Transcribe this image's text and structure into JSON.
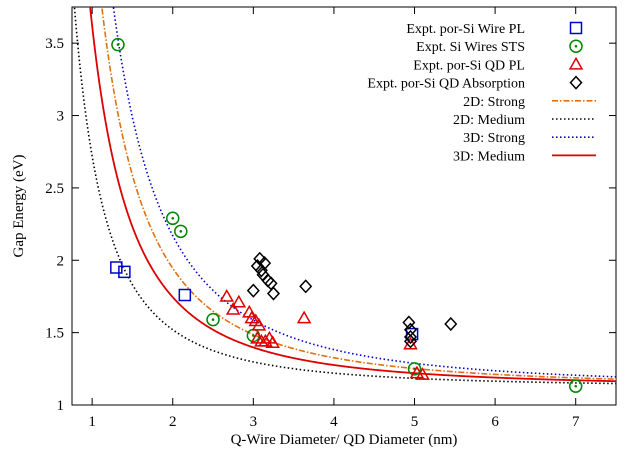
{
  "chart_data": {
    "type": "scatter",
    "title": "",
    "xlabel": "Q-Wire Diameter/ QD Diameter (nm)",
    "ylabel": "Gap Energy (eV)",
    "xlim": [
      0.75,
      7.5
    ],
    "ylim": [
      1.0,
      3.75
    ],
    "x_ticks": [
      "1",
      "2",
      "3",
      "4",
      "5",
      "6",
      "7"
    ],
    "y_ticks": [
      "1",
      "1.5",
      "2",
      "2.5",
      "3",
      "3.5"
    ],
    "grid": false,
    "legend_position": "top-right",
    "series": [
      {
        "name": "Expt. por-Si Wire PL",
        "kind": "points",
        "marker": "square",
        "color": "#0000cc",
        "points": [
          [
            1.3,
            1.95
          ],
          [
            1.4,
            1.92
          ],
          [
            2.15,
            1.76
          ],
          [
            4.97,
            1.49
          ]
        ]
      },
      {
        "name": "Expt. Si Wires STS",
        "kind": "points",
        "marker": "circle-dot",
        "color": "#008800",
        "points": [
          [
            1.32,
            3.49
          ],
          [
            2.0,
            2.29
          ],
          [
            2.1,
            2.2
          ],
          [
            2.5,
            1.59
          ],
          [
            3.0,
            1.48
          ],
          [
            5.0,
            1.25
          ],
          [
            7.0,
            1.13
          ]
        ]
      },
      {
        "name": "Expt. por-Si QD PL",
        "kind": "points",
        "marker": "triangle",
        "color": "#dd0000",
        "points": [
          [
            2.67,
            1.75
          ],
          [
            2.75,
            1.66
          ],
          [
            2.82,
            1.71
          ],
          [
            2.95,
            1.64
          ],
          [
            2.98,
            1.6
          ],
          [
            3.03,
            1.58
          ],
          [
            3.07,
            1.55
          ],
          [
            3.05,
            1.46
          ],
          [
            3.1,
            1.44
          ],
          [
            3.15,
            1.44
          ],
          [
            3.2,
            1.46
          ],
          [
            3.24,
            1.43
          ],
          [
            3.63,
            1.6
          ],
          [
            4.95,
            1.42
          ],
          [
            5.03,
            1.22
          ],
          [
            5.1,
            1.21
          ]
        ]
      },
      {
        "name": "Expt. por-Si QD Absorption",
        "kind": "points",
        "marker": "diamond",
        "color": "#000000",
        "points": [
          [
            3.0,
            1.79
          ],
          [
            3.05,
            1.96
          ],
          [
            3.08,
            2.01
          ],
          [
            3.1,
            1.93
          ],
          [
            3.12,
            1.9
          ],
          [
            3.14,
            1.98
          ],
          [
            3.18,
            1.86
          ],
          [
            3.22,
            1.84
          ],
          [
            3.25,
            1.77
          ],
          [
            3.65,
            1.82
          ],
          [
            4.93,
            1.57
          ],
          [
            4.95,
            1.52
          ],
          [
            4.95,
            1.47
          ],
          [
            4.95,
            1.44
          ],
          [
            5.45,
            1.56
          ]
        ]
      },
      {
        "name": "2D: Strong",
        "kind": "curve",
        "style": "dash-dot",
        "color": "#e07010",
        "a": 3.3
      },
      {
        "name": "2D: Medium",
        "kind": "curve",
        "style": "dotted",
        "color": "#000000",
        "a": 1.6
      },
      {
        "name": "3D: Strong",
        "kind": "curve",
        "style": "dotted",
        "color": "#0000cc",
        "a": 4.2
      },
      {
        "name": "3D: Medium",
        "kind": "curve",
        "style": "solid",
        "color": "#dd0000",
        "a": 2.5
      }
    ]
  }
}
